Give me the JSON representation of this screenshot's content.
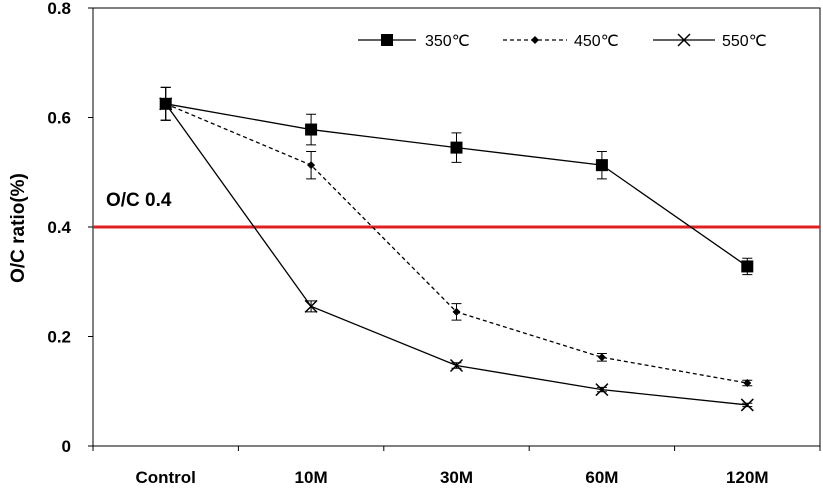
{
  "chart_data": {
    "type": "line",
    "title": "",
    "xlabel": "",
    "ylabel": "O/C ratio(%)",
    "categories": [
      "Control",
      "10M",
      "30M",
      "60M",
      "120M"
    ],
    "ylim": [
      0,
      0.8
    ],
    "yticks": [
      0,
      0.2,
      0.4,
      0.6,
      0.8
    ],
    "ytick_labels": [
      "0",
      "0.2",
      "0.4",
      "0.6",
      "0.8"
    ],
    "grid": false,
    "legend_position": "top-right",
    "series": [
      {
        "name": "350℃",
        "marker": "square",
        "dash": "solid",
        "color": "#000000",
        "values": [
          0.625,
          0.578,
          0.545,
          0.513,
          0.328
        ],
        "errors": [
          0.03,
          0.028,
          0.027,
          0.025,
          0.015
        ]
      },
      {
        "name": "450℃",
        "marker": "diamond",
        "dash": "dashed",
        "color": "#000000",
        "values": [
          0.625,
          0.513,
          0.245,
          0.162,
          0.115
        ],
        "errors": [
          0.03,
          0.025,
          0.015,
          0.007,
          0.005
        ]
      },
      {
        "name": "550℃",
        "marker": "cross",
        "dash": "solid",
        "color": "#000000",
        "values": [
          0.625,
          0.255,
          0.147,
          0.103,
          0.075
        ],
        "errors": [
          0.03,
          0.01,
          0.005,
          0.004,
          0.003
        ]
      }
    ],
    "reference_line": {
      "value": 0.4,
      "label": "O/C 0.4",
      "color": "#e02020"
    }
  }
}
